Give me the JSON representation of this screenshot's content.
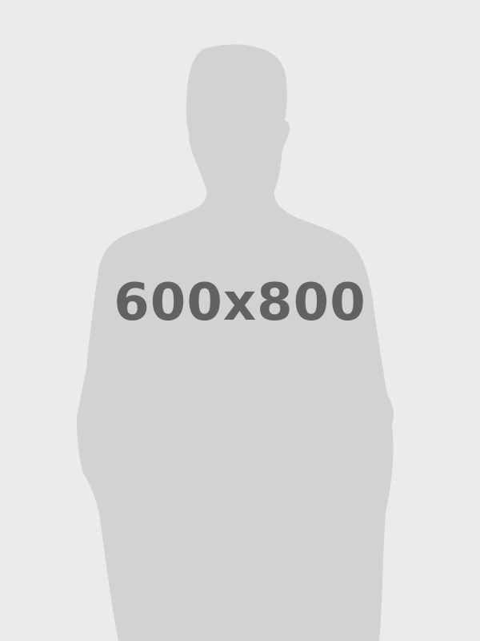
{
  "placeholder": {
    "label": "600x800",
    "colors": {
      "background": "#ebebeb",
      "silhouette": "#d2d2d2",
      "text": "#626262"
    }
  }
}
